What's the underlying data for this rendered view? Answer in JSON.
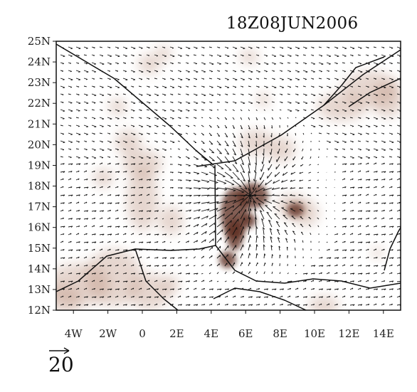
{
  "title": "18Z08JUN2006",
  "map": {
    "lat_range": [
      12,
      25
    ],
    "lon_range": [
      -5,
      15
    ],
    "lat_ticks": [
      {
        "value": 25,
        "label": "25N"
      },
      {
        "value": 24,
        "label": "24N"
      },
      {
        "value": 23,
        "label": "23N"
      },
      {
        "value": 22,
        "label": "22N"
      },
      {
        "value": 21,
        "label": "21N"
      },
      {
        "value": 20,
        "label": "20N"
      },
      {
        "value": 19,
        "label": "19N"
      },
      {
        "value": 18,
        "label": "18N"
      },
      {
        "value": 17,
        "label": "17N"
      },
      {
        "value": 16,
        "label": "16N"
      },
      {
        "value": 15,
        "label": "15N"
      },
      {
        "value": 14,
        "label": "14N"
      },
      {
        "value": 13,
        "label": "13N"
      },
      {
        "value": 12,
        "label": "12N"
      }
    ],
    "lon_ticks": [
      {
        "value": -4,
        "label": "4W"
      },
      {
        "value": -2,
        "label": "2W"
      },
      {
        "value": 0,
        "label": "0"
      },
      {
        "value": 2,
        "label": "2E"
      },
      {
        "value": 4,
        "label": "4E"
      },
      {
        "value": 6,
        "label": "6E"
      },
      {
        "value": 8,
        "label": "8E"
      },
      {
        "value": 10,
        "label": "10E"
      },
      {
        "value": 12,
        "label": "12E"
      },
      {
        "value": 14,
        "label": "14E"
      }
    ],
    "shading_color": "#b27f6e",
    "vector_color": "#111111",
    "border_color": "#111111"
  },
  "reference_vector": {
    "label": "20"
  }
}
